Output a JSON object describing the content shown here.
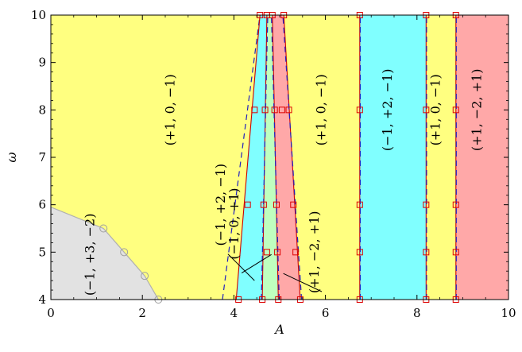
{
  "chart_data": {
    "type": "area",
    "xlabel": "A",
    "ylabel": "ω",
    "xlim": [
      0,
      10
    ],
    "ylim": [
      4,
      10
    ],
    "x_ticks": [
      "0",
      "2",
      "4",
      "6",
      "8",
      "10"
    ],
    "y_ticks": [
      "4",
      "5",
      "6",
      "7",
      "8",
      "9",
      "10"
    ],
    "colors": {
      "yellow": "#ffff80",
      "cyan": "#80ffff",
      "pink": "#ffa8a8",
      "gray": "#e2e2e2",
      "green": "#bfffbf",
      "boundary": "#b0b0b0",
      "solid_line": "#cc0000",
      "dashed_line": "#2020c0",
      "marker": "#dd0000"
    },
    "regions": [
      {
        "label": "(−1, +3, −2)",
        "color": "gray",
        "polygon": [
          [
            0,
            4
          ],
          [
            0,
            5.95
          ],
          [
            1.15,
            5.5
          ],
          [
            1.6,
            5.0
          ],
          [
            2.05,
            4.5
          ],
          [
            2.35,
            4.0
          ]
        ]
      },
      {
        "label": "(+1, 0, −1)",
        "color": "yellow",
        "polygon": [
          [
            0,
            4
          ],
          [
            10,
            4
          ],
          [
            10,
            10
          ],
          [
            0,
            10
          ]
        ]
      },
      {
        "label": "(−1, +2, −1)",
        "color": "cyan",
        "polygon": [
          [
            4.05,
            4.0
          ],
          [
            4.57,
            10.0
          ],
          [
            4.72,
            10.0
          ],
          [
            4.62,
            4.0
          ]
        ]
      },
      {
        "label": "(−1, 0, +1)",
        "color": "green",
        "polygon": [
          [
            4.62,
            4.0
          ],
          [
            4.72,
            10.0
          ],
          [
            4.84,
            10.0
          ],
          [
            4.97,
            4.0
          ]
        ]
      },
      {
        "label": "(+1, −2, +1)",
        "color": "pink",
        "polygon": [
          [
            4.97,
            4.0
          ],
          [
            4.84,
            10.0
          ],
          [
            5.09,
            10.0
          ],
          [
            5.45,
            4.0
          ]
        ]
      },
      {
        "label": "(+1, 0, −1)",
        "color": "yellow",
        "polygon": [
          [
            5.45,
            4.0
          ],
          [
            5.09,
            10.0
          ],
          [
            6.75,
            10.0
          ],
          [
            6.75,
            4.0
          ]
        ]
      },
      {
        "label": "(−1, +2, −1)",
        "color": "cyan",
        "polygon": [
          [
            6.75,
            4.0
          ],
          [
            6.75,
            10.0
          ],
          [
            8.2,
            10.0
          ],
          [
            8.2,
            4.0
          ]
        ]
      },
      {
        "label": "(+1, 0, −1)",
        "color": "yellow",
        "polygon": [
          [
            8.2,
            4.0
          ],
          [
            8.2,
            10.0
          ],
          [
            8.85,
            10.0
          ],
          [
            8.85,
            4.0
          ]
        ]
      },
      {
        "label": "(+1, −2, +1)",
        "color": "pink",
        "polygon": [
          [
            8.85,
            4.0
          ],
          [
            8.85,
            10.0
          ],
          [
            10.0,
            10.0
          ],
          [
            10.0,
            4.0
          ]
        ]
      }
    ],
    "lines": [
      {
        "style": "dashed",
        "points": [
          [
            3.75,
            4.0
          ],
          [
            4.57,
            10.0
          ]
        ]
      },
      {
        "style": "solid",
        "points": [
          [
            4.05,
            4.0
          ],
          [
            4.57,
            10.0
          ]
        ]
      },
      {
        "style": "solid",
        "points": [
          [
            4.62,
            4.0
          ],
          [
            4.72,
            10.0
          ]
        ]
      },
      {
        "style": "dashed",
        "points": [
          [
            4.6,
            4.0
          ],
          [
            4.74,
            10.0
          ]
        ]
      },
      {
        "style": "solid",
        "points": [
          [
            4.97,
            4.0
          ],
          [
            4.84,
            10.0
          ]
        ]
      },
      {
        "style": "dashed",
        "points": [
          [
            4.99,
            4.0
          ],
          [
            4.82,
            10.0
          ]
        ]
      },
      {
        "style": "solid",
        "points": [
          [
            5.45,
            4.0
          ],
          [
            5.09,
            10.0
          ]
        ]
      },
      {
        "style": "dashed",
        "points": [
          [
            5.48,
            4.0
          ],
          [
            5.07,
            10.0
          ]
        ]
      },
      {
        "style": "solid",
        "points": [
          [
            6.75,
            4.0
          ],
          [
            6.75,
            10.0
          ]
        ]
      },
      {
        "style": "dashed",
        "points": [
          [
            6.76,
            4.0
          ],
          [
            6.76,
            10.0
          ]
        ]
      },
      {
        "style": "solid",
        "points": [
          [
            8.2,
            4.0
          ],
          [
            8.2,
            10.0
          ]
        ]
      },
      {
        "style": "dashed",
        "points": [
          [
            8.21,
            4.0
          ],
          [
            8.21,
            10.0
          ]
        ]
      },
      {
        "style": "solid",
        "points": [
          [
            8.85,
            4.0
          ],
          [
            8.85,
            10.0
          ]
        ]
      },
      {
        "style": "dashed",
        "points": [
          [
            8.86,
            4.0
          ],
          [
            8.86,
            10.0
          ]
        ]
      }
    ],
    "square_markers": [
      [
        4.1,
        4.0
      ],
      [
        4.3,
        6.0
      ],
      [
        4.45,
        8.0
      ],
      [
        4.57,
        10.0
      ],
      [
        4.62,
        4.0
      ],
      [
        4.65,
        6.0
      ],
      [
        4.68,
        8.0
      ],
      [
        4.72,
        10.0
      ],
      [
        4.97,
        4.0
      ],
      [
        4.93,
        6.0
      ],
      [
        4.89,
        8.0
      ],
      [
        4.84,
        10.0
      ],
      [
        5.45,
        4.0
      ],
      [
        5.3,
        6.0
      ],
      [
        5.2,
        8.0
      ],
      [
        5.09,
        10.0
      ],
      [
        4.72,
        5.0
      ],
      [
        4.95,
        5.0
      ],
      [
        5.05,
        8.0
      ],
      [
        5.35,
        5.0
      ],
      [
        6.75,
        4.0
      ],
      [
        6.75,
        5.0
      ],
      [
        6.75,
        6.0
      ],
      [
        6.75,
        8.0
      ],
      [
        6.75,
        10.0
      ],
      [
        8.2,
        4.0
      ],
      [
        8.2,
        5.0
      ],
      [
        8.2,
        6.0
      ],
      [
        8.2,
        8.0
      ],
      [
        8.2,
        10.0
      ],
      [
        8.85,
        4.0
      ],
      [
        8.85,
        5.0
      ],
      [
        8.85,
        6.0
      ],
      [
        8.85,
        8.0
      ],
      [
        8.85,
        10.0
      ]
    ],
    "circle_markers": [
      [
        1.15,
        5.5
      ],
      [
        1.6,
        5.0
      ],
      [
        2.05,
        4.5
      ],
      [
        2.35,
        4.0
      ]
    ],
    "annotations": [
      {
        "text": "(+1, 0, −1)",
        "x": 2.7,
        "y": 8.0,
        "rotation": -90
      },
      {
        "text": "(−1, +3, −2)",
        "x": 0.95,
        "y": 4.95,
        "rotation": -90
      },
      {
        "text": "(−1, +2, −1)",
        "x": 3.8,
        "y": 6.0,
        "rotation": -90,
        "pointer_to": [
          4.45,
          4.4
        ]
      },
      {
        "text": "(−1, 0, +1)",
        "x": 4.1,
        "y": 5.6,
        "rotation": -90,
        "pointer_to": [
          4.82,
          4.95
        ]
      },
      {
        "text": "(+1, −2, +1)",
        "x": 5.85,
        "y": 5.0,
        "rotation": -90,
        "pointer_to": [
          5.08,
          4.55
        ]
      },
      {
        "text": "(+1, 0, −1)",
        "x": 6.0,
        "y": 8.0,
        "rotation": -90
      },
      {
        "text": "(−1, +2, −1)",
        "x": 7.45,
        "y": 8.0,
        "rotation": -90
      },
      {
        "text": "(+1, 0, −1)",
        "x": 8.5,
        "y": 8.0,
        "rotation": -90
      },
      {
        "text": "(+1, −2, +1)",
        "x": 9.4,
        "y": 8.0,
        "rotation": -90
      }
    ]
  }
}
